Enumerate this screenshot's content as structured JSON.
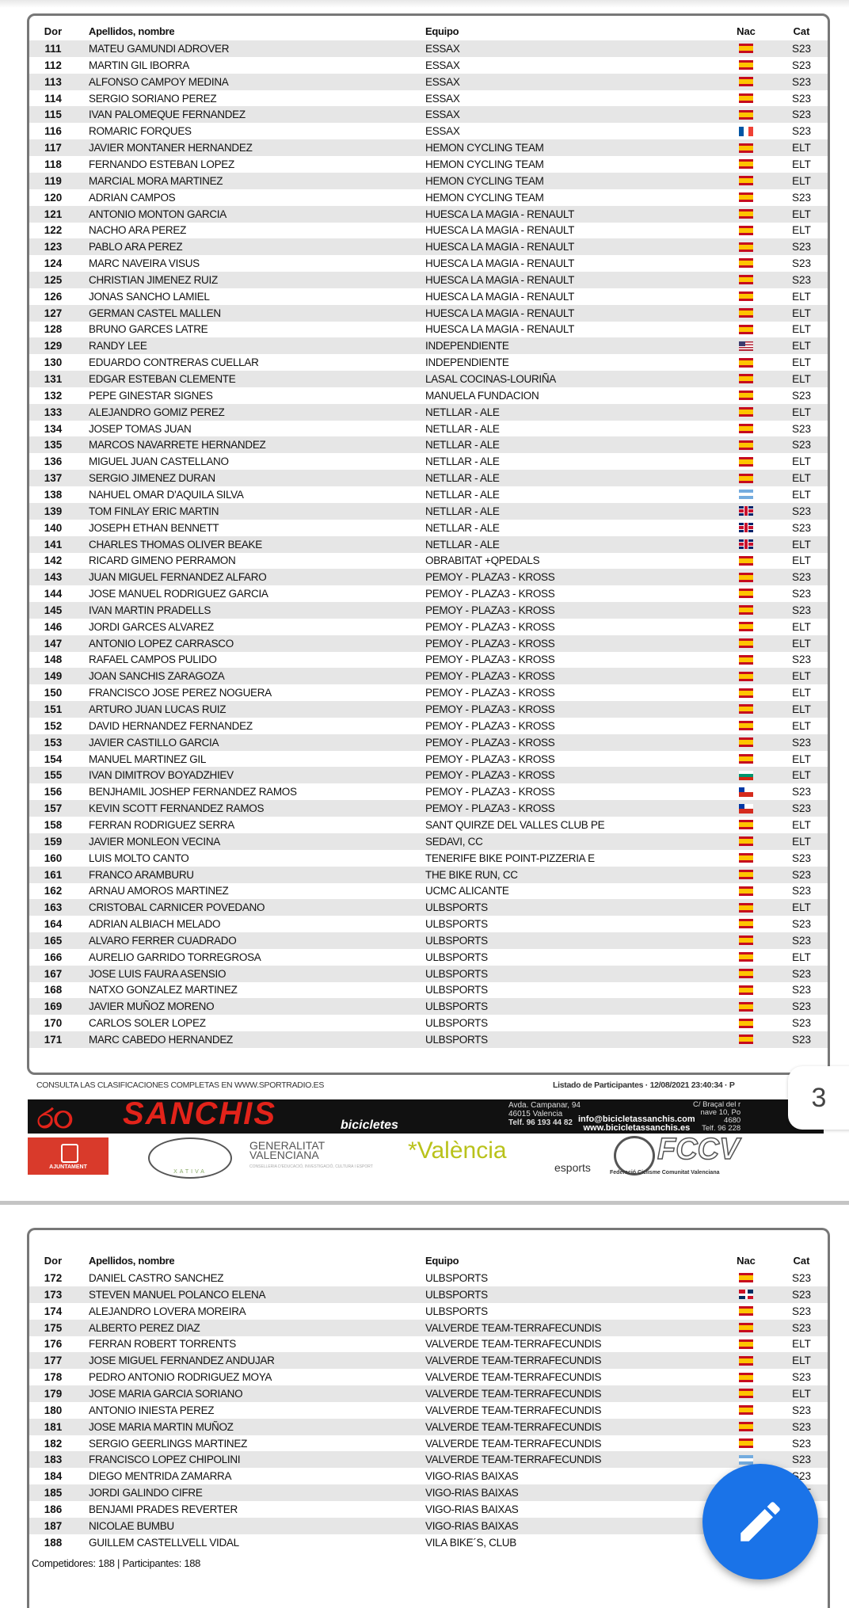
{
  "columns": {
    "dor": "Dor",
    "name": "Apellidos, nombre",
    "team": "Equipo",
    "nac": "Nac",
    "cat": "Cat"
  },
  "pages": [
    {
      "rows": [
        [
          111,
          "MATEU GAMUNDI ADROVER",
          "ESSAX",
          "es",
          "S23"
        ],
        [
          112,
          "MARTIN GIL IBORRA",
          "ESSAX",
          "es",
          "S23"
        ],
        [
          113,
          "ALFONSO CAMPOY MEDINA",
          "ESSAX",
          "es",
          "S23"
        ],
        [
          114,
          "SERGIO SORIANO PEREZ",
          "ESSAX",
          "es",
          "S23"
        ],
        [
          115,
          "IVAN PALOMEQUE FERNANDEZ",
          "ESSAX",
          "es",
          "S23"
        ],
        [
          116,
          "ROMARIC FORQUES",
          "ESSAX",
          "fr",
          "S23"
        ],
        [
          117,
          "JAVIER MONTANER HERNANDEZ",
          "HEMON CYCLING TEAM",
          "es",
          "ELT"
        ],
        [
          118,
          "FERNANDO ESTEBAN LOPEZ",
          "HEMON CYCLING TEAM",
          "es",
          "ELT"
        ],
        [
          119,
          "MARCIAL MORA MARTINEZ",
          "HEMON CYCLING TEAM",
          "es",
          "ELT"
        ],
        [
          120,
          "ADRIAN CAMPOS",
          "HEMON CYCLING TEAM",
          "es",
          "S23"
        ],
        [
          121,
          "ANTONIO MONTON GARCIA",
          "HUESCA LA MAGIA - RENAULT",
          "es",
          "ELT"
        ],
        [
          122,
          "NACHO ARA PEREZ",
          "HUESCA LA MAGIA - RENAULT",
          "es",
          "ELT"
        ],
        [
          123,
          "PABLO ARA PEREZ",
          "HUESCA LA MAGIA - RENAULT",
          "es",
          "S23"
        ],
        [
          124,
          "MARC NAVEIRA VISUS",
          "HUESCA LA MAGIA - RENAULT",
          "es",
          "S23"
        ],
        [
          125,
          "CHRISTIAN JIMENEZ RUIZ",
          "HUESCA LA MAGIA - RENAULT",
          "es",
          "S23"
        ],
        [
          126,
          "JONAS SANCHO LAMIEL",
          "HUESCA LA MAGIA - RENAULT",
          "es",
          "ELT"
        ],
        [
          127,
          "GERMAN CASTEL MALLEN",
          "HUESCA LA MAGIA - RENAULT",
          "es",
          "ELT"
        ],
        [
          128,
          "BRUNO GARCES LATRE",
          "HUESCA LA MAGIA - RENAULT",
          "es",
          "ELT"
        ],
        [
          129,
          "RANDY LEE",
          "INDEPENDIENTE",
          "us",
          "ELT"
        ],
        [
          130,
          "EDUARDO CONTRERAS CUELLAR",
          "INDEPENDIENTE",
          "es",
          "ELT"
        ],
        [
          131,
          "EDGAR ESTEBAN CLEMENTE",
          "LASAL COCINAS-LOURIÑA",
          "es",
          "ELT"
        ],
        [
          132,
          "PEPE GINESTAR SIGNES",
          "MANUELA FUNDACION",
          "es",
          "S23"
        ],
        [
          133,
          "ALEJANDRO GOMIZ PEREZ",
          "NETLLAR - ALE",
          "es",
          "ELT"
        ],
        [
          134,
          "JOSEP TOMAS JUAN",
          "NETLLAR - ALE",
          "es",
          "S23"
        ],
        [
          135,
          "MARCOS NAVARRETE HERNANDEZ",
          "NETLLAR - ALE",
          "es",
          "S23"
        ],
        [
          136,
          "MIGUEL JUAN CASTELLANO",
          "NETLLAR - ALE",
          "es",
          "ELT"
        ],
        [
          137,
          "SERGIO JIMENEZ DURAN",
          "NETLLAR - ALE",
          "es",
          "ELT"
        ],
        [
          138,
          "NAHUEL OMAR D'AQUILA SILVA",
          "NETLLAR - ALE",
          "ar",
          "ELT"
        ],
        [
          139,
          "TOM FINLAY ERIC MARTIN",
          "NETLLAR - ALE",
          "gb",
          "S23"
        ],
        [
          140,
          "JOSEPH ETHAN BENNETT",
          "NETLLAR - ALE",
          "gb",
          "S23"
        ],
        [
          141,
          "CHARLES THOMAS OLIVER BEAKE",
          "NETLLAR - ALE",
          "gb",
          "ELT"
        ],
        [
          142,
          "RICARD GIMENO PERRAMON",
          "OBRABITAT +QPEDALS",
          "es",
          "ELT"
        ],
        [
          143,
          "JUAN MIGUEL FERNANDEZ ALFARO",
          "PEMOY - PLAZA3 - KROSS",
          "es",
          "S23"
        ],
        [
          144,
          "JOSE MANUEL RODRIGUEZ GARCIA",
          "PEMOY - PLAZA3 - KROSS",
          "es",
          "S23"
        ],
        [
          145,
          "IVAN MARTIN PRADELLS",
          "PEMOY - PLAZA3 - KROSS",
          "es",
          "S23"
        ],
        [
          146,
          "JORDI GARCES ALVAREZ",
          "PEMOY - PLAZA3 - KROSS",
          "es",
          "ELT"
        ],
        [
          147,
          "ANTONIO LOPEZ CARRASCO",
          "PEMOY - PLAZA3 - KROSS",
          "es",
          "ELT"
        ],
        [
          148,
          "RAFAEL CAMPOS PULIDO",
          "PEMOY - PLAZA3 - KROSS",
          "es",
          "S23"
        ],
        [
          149,
          "JOAN SANCHIS ZARAGOZA",
          "PEMOY - PLAZA3 - KROSS",
          "es",
          "ELT"
        ],
        [
          150,
          "FRANCISCO JOSE PEREZ NOGUERA",
          "PEMOY - PLAZA3 - KROSS",
          "es",
          "ELT"
        ],
        [
          151,
          "ARTURO JUAN LUCAS RUIZ",
          "PEMOY - PLAZA3 - KROSS",
          "es",
          "ELT"
        ],
        [
          152,
          "DAVID HERNANDEZ FERNANDEZ",
          "PEMOY - PLAZA3 - KROSS",
          "es",
          "ELT"
        ],
        [
          153,
          "JAVIER CASTILLO GARCIA",
          "PEMOY - PLAZA3 - KROSS",
          "es",
          "S23"
        ],
        [
          154,
          "MANUEL MARTINEZ GIL",
          "PEMOY - PLAZA3 - KROSS",
          "es",
          "ELT"
        ],
        [
          155,
          "IVAN DIMITROV BOYADZHIEV",
          "PEMOY - PLAZA3 - KROSS",
          "bg",
          "ELT"
        ],
        [
          156,
          "BENJHAMIL JOSHEP FERNANDEZ RAMOS",
          "PEMOY - PLAZA3 - KROSS",
          "cl",
          "S23"
        ],
        [
          157,
          "KEVIN SCOTT FERNANDEZ RAMOS",
          "PEMOY - PLAZA3 - KROSS",
          "cl",
          "S23"
        ],
        [
          158,
          "FERRAN RODRIGUEZ SERRA",
          "SANT QUIRZE DEL VALLES CLUB PE",
          "es",
          "ELT"
        ],
        [
          159,
          "JAVIER MONLEON VECINA",
          "SEDAVI, CC",
          "es",
          "ELT"
        ],
        [
          160,
          "LUIS MOLTO CANTO",
          "TENERIFE BIKE POINT-PIZZERIA E",
          "es",
          "S23"
        ],
        [
          161,
          "FRANCO ARAMBURU",
          "THE BIKE RUN, CC",
          "es",
          "S23"
        ],
        [
          162,
          "ARNAU AMOROS MARTINEZ",
          "UCMC ALICANTE",
          "es",
          "S23"
        ],
        [
          163,
          "CRISTOBAL CARNICER POVEDANO",
          "ULBSPORTS",
          "es",
          "ELT"
        ],
        [
          164,
          "ADRIAN ALBIACH MELADO",
          "ULBSPORTS",
          "es",
          "S23"
        ],
        [
          165,
          "ALVARO FERRER CUADRADO",
          "ULBSPORTS",
          "es",
          "S23"
        ],
        [
          166,
          "AURELIO GARRIDO TORREGROSA",
          "ULBSPORTS",
          "es",
          "ELT"
        ],
        [
          167,
          "JOSE LUIS FAURA ASENSIO",
          "ULBSPORTS",
          "es",
          "S23"
        ],
        [
          168,
          "NATXO GONZALEZ MARTINEZ",
          "ULBSPORTS",
          "es",
          "S23"
        ],
        [
          169,
          "JAVIER MUÑOZ MORENO",
          "ULBSPORTS",
          "es",
          "S23"
        ],
        [
          170,
          "CARLOS SOLER LOPEZ",
          "ULBSPORTS",
          "es",
          "S23"
        ],
        [
          171,
          "MARC CABEDO HERNANDEZ",
          "ULBSPORTS",
          "es",
          "S23"
        ]
      ]
    },
    {
      "rows": [
        [
          172,
          "DANIEL CASTRO SANCHEZ",
          "ULBSPORTS",
          "es",
          "S23"
        ],
        [
          173,
          "STEVEN MANUEL POLANCO ELENA",
          "ULBSPORTS",
          "do",
          "S23"
        ],
        [
          174,
          "ALEJANDRO LOVERA MOREIRA",
          "ULBSPORTS",
          "es",
          "S23"
        ],
        [
          175,
          "ALBERTO PEREZ DIAZ",
          "VALVERDE TEAM-TERRAFECUNDIS",
          "es",
          "S23"
        ],
        [
          176,
          "FERRAN ROBERT TORRENTS",
          "VALVERDE TEAM-TERRAFECUNDIS",
          "es",
          "ELT"
        ],
        [
          177,
          "JOSE MIGUEL FERNANDEZ ANDUJAR",
          "VALVERDE TEAM-TERRAFECUNDIS",
          "es",
          "ELT"
        ],
        [
          178,
          "PEDRO ANTONIO RODRIGUEZ MOYA",
          "VALVERDE TEAM-TERRAFECUNDIS",
          "es",
          "S23"
        ],
        [
          179,
          "JOSE MARIA GARCIA SORIANO",
          "VALVERDE TEAM-TERRAFECUNDIS",
          "es",
          "ELT"
        ],
        [
          180,
          "ANTONIO INIESTA PEREZ",
          "VALVERDE TEAM-TERRAFECUNDIS",
          "es",
          "S23"
        ],
        [
          181,
          "JOSE MARIA MARTIN MUÑOZ",
          "VALVERDE TEAM-TERRAFECUNDIS",
          "es",
          "S23"
        ],
        [
          182,
          "SERGIO GEERLINGS MARTINEZ",
          "VALVERDE TEAM-TERRAFECUNDIS",
          "es",
          "S23"
        ],
        [
          183,
          "FRANCISCO LOPEZ CHIPOLINI",
          "VALVERDE TEAM-TERRAFECUNDIS",
          "ar",
          "S23"
        ],
        [
          184,
          "DIEGO MENTRIDA ZAMARRA",
          "VIGO-RIAS BAIXAS",
          "es",
          "S23"
        ],
        [
          185,
          "JORDI GALINDO CIFRE",
          "VIGO-RIAS BAIXAS",
          "",
          "ELT"
        ],
        [
          186,
          "BENJAMI PRADES REVERTER",
          "VIGO-RIAS BAIXAS",
          "",
          ""
        ],
        [
          187,
          "NICOLAE BUMBU",
          "VIGO-RIAS BAIXAS",
          "",
          ""
        ],
        [
          188,
          "GUILLEM CASTELLVELL VIDAL",
          "VILA BIKE´S, CLUB",
          "",
          ""
        ]
      ]
    }
  ],
  "footer": {
    "left": "CONSULTA LAS CLASIFICACIONES COMPLETAS EN WWW.SPORTRADIO.ES",
    "right": "Listado de Participantes · 12/08/2021 23:40:34 · P"
  },
  "sponsor": {
    "brand": "SANCHIS",
    "sub": "bicicletes",
    "address": [
      "Avda. Campanar, 94",
      "46015 Valencia",
      "Telf. 96 193 44 82"
    ],
    "address2": [
      "C/ Braçal del r",
      "nave 10, Po",
      "4680",
      "Telf. 96 228"
    ],
    "email": "info@bicicletassanchis.com",
    "web": "www.bicicletassanchis.es"
  },
  "logos": {
    "ajuntament": "AJUNTAMENT",
    "xativa": "XATIVA",
    "gv": [
      "GENERALITAT",
      "VALENCIANA"
    ],
    "gv_sub": "CONSELLERIA D'EDUCACIÓ, INVESTIGACIÓ, CULTURA I ESPORT",
    "valencia": "València",
    "esports": "esports",
    "fccv": "FCCV",
    "fccv_sub": "Federació Ciclisme Comunitat Valenciana"
  },
  "page_number": "3",
  "totals": "Competidores: 188 | Participantes: 188",
  "fab_icon": "pencil-icon",
  "colors": {
    "row_shade": "#e6e6e6",
    "fab": "#1a73e8",
    "brand_red": "#e2231a"
  }
}
